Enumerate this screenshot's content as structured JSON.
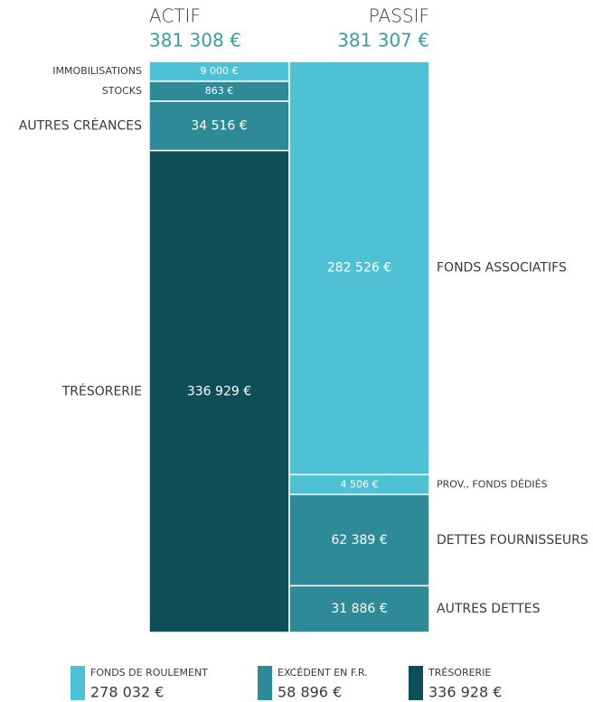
{
  "chart_data": {
    "type": "bar",
    "stacked": true,
    "columns": [
      {
        "title": "ACTIF",
        "total": 381308,
        "total_label": "381 308 €",
        "names": [
          "IMMOBILISATIONS",
          "STOCKS",
          "AUTRES CRÉANCES",
          "TRÉSORERIE"
        ],
        "values": [
          9000,
          863,
          34516,
          336929
        ],
        "value_labels": [
          "9 000 €",
          "863 €",
          "34 516 €",
          "336 929 €"
        ],
        "colors": [
          "#4ec1d4",
          "#2e8a96",
          "#2e8a96",
          "#0e4f57"
        ]
      },
      {
        "title": "PASSIF",
        "total": 381307,
        "total_label": "381 307 €",
        "names": [
          "FONDS ASSOCIATIFS",
          "PROV., FONDS DÉDIÉS",
          "DETTES FOURNISSEURS",
          "AUTRES DETTES"
        ],
        "values": [
          282526,
          4506,
          62389,
          31886
        ],
        "value_labels": [
          "282 526 €",
          "4 506 €",
          "62 389 €",
          "31 886 €"
        ],
        "colors": [
          "#4ec1d4",
          "#4ec1d4",
          "#2e8a96",
          "#2e8a96"
        ]
      }
    ],
    "legend": {
      "names": [
        "FONDS DE ROULEMENT",
        "EXCÉDENT EN F.R.",
        "TRÉSORERIE"
      ],
      "values": [
        278032,
        58896,
        336928
      ],
      "value_labels": [
        "278 032 €",
        "58 896 €",
        "336 928 €"
      ],
      "colors": [
        "#4ec1d4",
        "#2e8a96",
        "#0e4f57"
      ]
    }
  }
}
